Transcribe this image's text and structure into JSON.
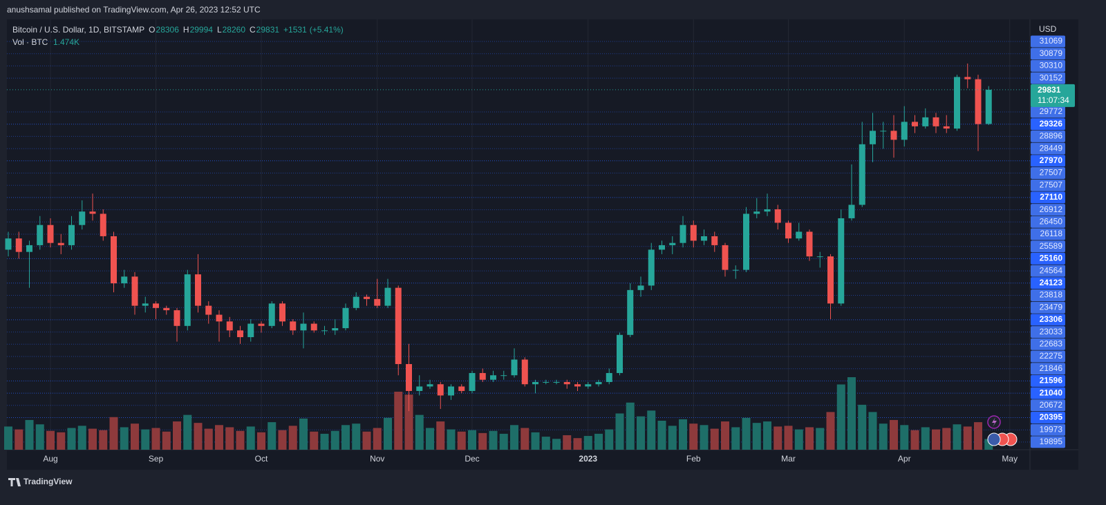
{
  "header": "anushsamal published on TradingView.com, Apr 26, 2023 12:52 UTC",
  "footer_brand": "TradingView",
  "chart_data": {
    "type": "candlestick",
    "title": "Bitcoin / U.S. Dollar, 1D, BITSTAMP",
    "legend": [
      {
        "key": "O",
        "value": "28306"
      },
      {
        "key": "H",
        "value": "29994"
      },
      {
        "key": "L",
        "value": "28260"
      },
      {
        "key": "C",
        "value": "29831"
      }
    ],
    "change": "+1531",
    "change_pct": "(+5.41%)",
    "volume_title": "Vol · BTC",
    "volume_value": "1.474K",
    "axis_unit": "USD",
    "last_price": 29831,
    "countdown": "11:07:34",
    "up_color": "#26a69a",
    "down_color": "#ef5350",
    "volume_up_color": "#1e6e68",
    "volume_down_color": "#8e3a3c",
    "ylim": [
      13780,
      32970
    ],
    "categories": [
      null,
      null,
      null,
      null,
      "Aug",
      null,
      null,
      null,
      null,
      null,
      null,
      null,
      null,
      null,
      "Sep",
      null,
      null,
      null,
      null,
      null,
      null,
      null,
      null,
      null,
      "Oct",
      null,
      null,
      null,
      null,
      null,
      null,
      null,
      null,
      null,
      null,
      "Nov",
      null,
      null,
      null,
      null,
      null,
      null,
      null,
      null,
      "Dec",
      null,
      null,
      null,
      null,
      null,
      null,
      null,
      null,
      null,
      null,
      "2023",
      null,
      null,
      null,
      null,
      null,
      null,
      null,
      null,
      null,
      "Feb",
      null,
      null,
      null,
      null,
      null,
      null,
      null,
      null,
      "Mar",
      null,
      null,
      null,
      null,
      null,
      null,
      null,
      null,
      null,
      null,
      "Apr",
      null,
      null,
      null,
      null,
      null,
      null,
      null,
      null,
      null,
      "May"
    ],
    "open": [
      22700,
      23200,
      22600,
      22900,
      23800,
      23000,
      22900,
      23800,
      24400,
      24300,
      23300,
      21200,
      21500,
      20200,
      20300,
      20100,
      20000,
      19300,
      21600,
      20200,
      19800,
      19500,
      19100,
      18800,
      19400,
      19300,
      20300,
      19500,
      19100,
      19400,
      19100,
      19100,
      19200,
      20100,
      20600,
      20500,
      20200,
      21000,
      17600,
      16400,
      16600,
      16700,
      16200,
      16600,
      16400,
      17200,
      16900,
      17100,
      17100,
      17800,
      16700,
      16800,
      16800,
      16800,
      16700,
      16600,
      16700,
      16800,
      17200,
      18900,
      20900,
      21100,
      22700,
      22900,
      23000,
      23800,
      23100,
      23300,
      22900,
      21800,
      21800,
      24300,
      24400,
      24500,
      23900,
      23200,
      23500,
      22400,
      22400,
      20300,
      24100,
      24700,
      27400,
      28000,
      28000,
      27600,
      28400,
      28200,
      28600,
      28200,
      28100,
      30400,
      30300,
      28306,
      null,
      null
    ],
    "high": [
      23500,
      23500,
      23100,
      24200,
      24100,
      23400,
      24200,
      24900,
      25200,
      24500,
      23500,
      21800,
      21700,
      20600,
      20400,
      20200,
      20100,
      21800,
      22500,
      20400,
      20000,
      19700,
      19300,
      19600,
      19500,
      20400,
      20400,
      19600,
      19900,
      19500,
      19300,
      19600,
      20300,
      20800,
      20700,
      21400,
      21400,
      21100,
      18500,
      17100,
      16900,
      16800,
      16700,
      16700,
      17300,
      17400,
      17300,
      17300,
      18300,
      17900,
      16900,
      16900,
      16900,
      16900,
      16800,
      16800,
      16900,
      17400,
      19000,
      21200,
      21500,
      23000,
      23100,
      23300,
      24200,
      24000,
      23600,
      23500,
      23000,
      22000,
      24600,
      25000,
      25200,
      24700,
      24000,
      23900,
      23600,
      22600,
      22500,
      24500,
      26500,
      28400,
      28800,
      28400,
      28700,
      29100,
      28700,
      29000,
      28800,
      28700,
      30500,
      31000,
      30500,
      29994,
      null,
      null
    ],
    "low": [
      22400,
      22300,
      21000,
      22700,
      22800,
      22500,
      22700,
      23600,
      24000,
      23100,
      20800,
      21000,
      19800,
      19900,
      19600,
      19800,
      18600,
      19100,
      19900,
      19400,
      18600,
      18800,
      18500,
      18600,
      19000,
      19200,
      19300,
      18900,
      18300,
      19000,
      18900,
      18900,
      19100,
      20000,
      20200,
      20100,
      20100,
      17100,
      15500,
      16200,
      16500,
      15600,
      16000,
      16300,
      16300,
      16800,
      16800,
      16900,
      17000,
      16600,
      16300,
      16700,
      16700,
      16500,
      16400,
      16500,
      16600,
      16700,
      17100,
      18800,
      20600,
      20900,
      22500,
      22500,
      22800,
      22800,
      22900,
      22600,
      21500,
      21400,
      21700,
      24100,
      24200,
      23600,
      23000,
      23100,
      22200,
      21900,
      19600,
      20200,
      24000,
      24600,
      26600,
      27200,
      26800,
      27300,
      27900,
      28100,
      27900,
      27900,
      28000,
      29900,
      27100,
      28260,
      null,
      null
    ],
    "close": [
      23200,
      22600,
      22900,
      23800,
      23000,
      22900,
      23800,
      24400,
      24300,
      23300,
      21200,
      21500,
      20200,
      20300,
      20100,
      20000,
      19300,
      21600,
      20200,
      19800,
      19500,
      19100,
      18800,
      19400,
      19300,
      20300,
      19500,
      19100,
      19400,
      19100,
      19100,
      19200,
      20100,
      20600,
      20500,
      20200,
      21000,
      17600,
      16400,
      16600,
      16700,
      16200,
      16600,
      16400,
      17200,
      16900,
      17100,
      17100,
      17800,
      16700,
      16800,
      16800,
      16800,
      16700,
      16600,
      16700,
      16800,
      17200,
      18900,
      20900,
      21100,
      22700,
      22900,
      23000,
      23800,
      23100,
      23300,
      22900,
      21800,
      21800,
      24300,
      24400,
      24500,
      23900,
      23200,
      23500,
      22400,
      22400,
      20300,
      24100,
      24700,
      27400,
      28000,
      28000,
      27600,
      28400,
      28200,
      28600,
      28200,
      28100,
      30400,
      30300,
      28300,
      29831,
      null,
      null
    ],
    "volume": [
      3200,
      2800,
      4100,
      3500,
      2600,
      2400,
      3000,
      3300,
      2900,
      2700,
      4500,
      3100,
      3600,
      2800,
      3000,
      2500,
      3900,
      4800,
      3700,
      2900,
      3400,
      3100,
      2600,
      3200,
      2400,
      3800,
      2700,
      3300,
      4300,
      2500,
      2200,
      2600,
      3400,
      3600,
      2500,
      3000,
      4400,
      8000,
      7600,
      4800,
      3000,
      3900,
      2800,
      2500,
      2700,
      2300,
      2600,
      2200,
      3400,
      3000,
      2400,
      1800,
      1500,
      2000,
      1600,
      1900,
      2200,
      2800,
      5000,
      6500,
      4600,
      5400,
      4000,
      3300,
      4200,
      3600,
      3400,
      2900,
      3900,
      3100,
      4400,
      3700,
      3900,
      3200,
      3300,
      2800,
      3100,
      3000,
      5200,
      9000,
      10000,
      6200,
      5200,
      3600,
      4100,
      3400,
      2700,
      3100,
      2800,
      3000,
      3500,
      3200,
      3800,
      1474,
      null,
      null
    ],
    "price_levels": [
      31069,
      30879,
      30310,
      30152,
      29772,
      29326,
      28896,
      28449,
      27970,
      27507,
      27507,
      27110,
      26912,
      26450,
      26118,
      25589,
      25160,
      24564,
      24123,
      23818,
      23479,
      23306,
      23033,
      22683,
      22275,
      21846,
      21596,
      21040,
      20672,
      20395,
      19973,
      19895
    ],
    "level_emphasis": [
      false,
      false,
      false,
      false,
      false,
      true,
      false,
      false,
      true,
      false,
      false,
      true,
      false,
      false,
      false,
      false,
      true,
      false,
      true,
      false,
      false,
      true,
      false,
      false,
      false,
      false,
      true,
      true,
      false,
      true,
      false,
      false
    ]
  }
}
